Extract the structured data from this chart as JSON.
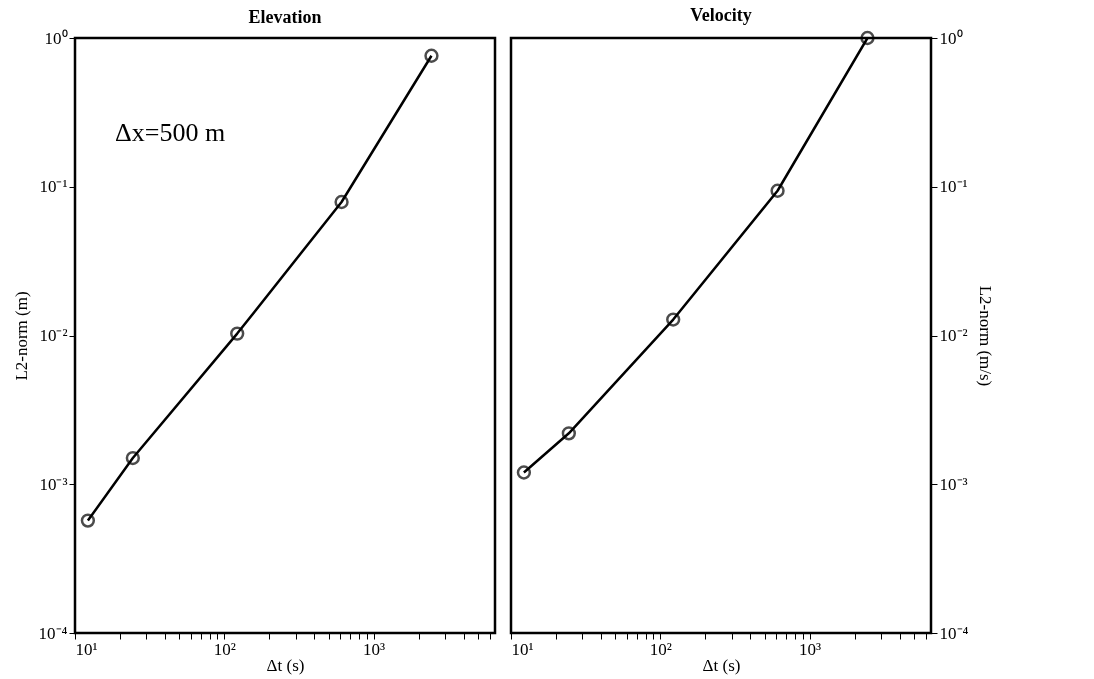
{
  "chart_data": [
    {
      "type": "line",
      "title": "Elevation",
      "xlabel": "Δt (s)",
      "ylabel": "L2-norm (m)",
      "log": "xy",
      "marker": "circle",
      "line_style": "solid",
      "grid": false,
      "x": [
        12.2,
        24.4,
        122,
        610,
        2440
      ],
      "series": [
        {
          "color": "#000000",
          "values": [
            0.00057,
            0.0015,
            0.0103,
            0.079,
            0.76
          ]
        }
      ],
      "xlim": [
        10,
        6500
      ],
      "ylim": [
        0.0001,
        1
      ],
      "xticks": [
        {
          "value": 10,
          "label": "10¹"
        },
        {
          "value": 20,
          "label": null
        },
        {
          "value": 30,
          "label": null
        },
        {
          "value": 40,
          "label": null
        },
        {
          "value": 50,
          "label": null
        },
        {
          "value": 60,
          "label": null
        },
        {
          "value": 70,
          "label": null
        },
        {
          "value": 80,
          "label": null
        },
        {
          "value": 90,
          "label": null
        },
        {
          "value": 100,
          "label": "10²"
        },
        {
          "value": 200,
          "label": null
        },
        {
          "value": 300,
          "label": null
        },
        {
          "value": 400,
          "label": null
        },
        {
          "value": 500,
          "label": null
        },
        {
          "value": 600,
          "label": null
        },
        {
          "value": 700,
          "label": null
        },
        {
          "value": 800,
          "label": null
        },
        {
          "value": 900,
          "label": null
        },
        {
          "value": 1000,
          "label": "10³"
        },
        {
          "value": 2000,
          "label": null
        },
        {
          "value": 3000,
          "label": null
        },
        {
          "value": 4000,
          "label": null
        },
        {
          "value": 5000,
          "label": null
        },
        {
          "value": 6000,
          "label": null
        }
      ],
      "yticks": [
        {
          "value": 0.0001,
          "label": "10⁻⁴"
        },
        {
          "value": 0.001,
          "label": "10⁻³"
        },
        {
          "value": 0.01,
          "label": "10⁻²"
        },
        {
          "value": 0.1,
          "label": "10⁻¹"
        },
        {
          "value": 1,
          "label": "10⁰"
        }
      ],
      "annotations": [
        "Δx=500 m"
      ]
    },
    {
      "type": "line",
      "title": "Velocity",
      "xlabel": "Δt (s)",
      "ylabel": "L2-norm (m/s)",
      "log": "xy",
      "marker": "circle",
      "line_style": "solid",
      "grid": false,
      "x": [
        12.2,
        24.4,
        122,
        610,
        2440
      ],
      "series": [
        {
          "color": "#000000",
          "values": [
            0.0012,
            0.0022,
            0.0128,
            0.094,
            1.0
          ]
        }
      ],
      "xlim": [
        10,
        6500
      ],
      "ylim": [
        0.0001,
        1
      ],
      "xticks": [
        {
          "value": 10,
          "label": "10¹"
        },
        {
          "value": 20,
          "label": null
        },
        {
          "value": 30,
          "label": null
        },
        {
          "value": 40,
          "label": null
        },
        {
          "value": 50,
          "label": null
        },
        {
          "value": 60,
          "label": null
        },
        {
          "value": 70,
          "label": null
        },
        {
          "value": 80,
          "label": null
        },
        {
          "value": 90,
          "label": null
        },
        {
          "value": 100,
          "label": "10²"
        },
        {
          "value": 200,
          "label": null
        },
        {
          "value": 300,
          "label": null
        },
        {
          "value": 400,
          "label": null
        },
        {
          "value": 500,
          "label": null
        },
        {
          "value": 600,
          "label": null
        },
        {
          "value": 700,
          "label": null
        },
        {
          "value": 800,
          "label": null
        },
        {
          "value": 900,
          "label": null
        },
        {
          "value": 1000,
          "label": "10³"
        },
        {
          "value": 2000,
          "label": null
        },
        {
          "value": 3000,
          "label": null
        },
        {
          "value": 4000,
          "label": null
        },
        {
          "value": 5000,
          "label": null
        },
        {
          "value": 6000,
          "label": null
        }
      ],
      "yticks": [
        {
          "value": 0.0001,
          "label": "10⁻⁴"
        },
        {
          "value": 0.001,
          "label": "10⁻³"
        },
        {
          "value": 0.01,
          "label": "10⁻²"
        },
        {
          "value": 0.1,
          "label": "10⁻¹"
        },
        {
          "value": 1,
          "label": "10⁰"
        }
      ]
    }
  ]
}
